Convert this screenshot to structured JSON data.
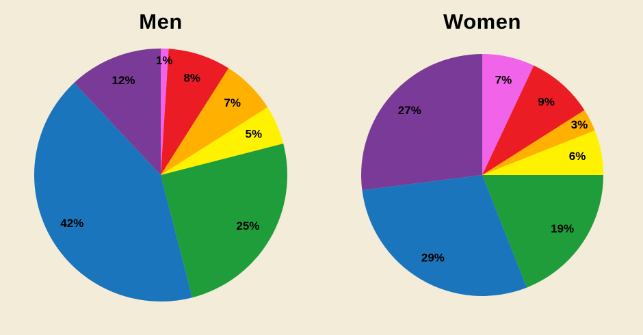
{
  "page": {
    "background": "#f2ecd8"
  },
  "chart_data": [
    {
      "type": "pie",
      "title": "Men",
      "values": [
        1,
        8,
        7,
        5,
        25,
        42,
        12
      ],
      "labels": [
        "1%",
        "8%",
        "7%",
        "5%",
        "25%",
        "42%",
        "12%"
      ],
      "colors": [
        "#f163e9",
        "#ec1c24",
        "#ffb000",
        "#fff200",
        "#1f9d3a",
        "#1b75bc",
        "#7a3b98"
      ],
      "start_angle_deg": 0,
      "direction": "clockwise",
      "legend": "none",
      "data_labels": "percent-inside"
    },
    {
      "type": "pie",
      "title": "Women",
      "values": [
        7,
        9,
        3,
        6,
        19,
        29,
        27
      ],
      "labels": [
        "7%",
        "9%",
        "3%",
        "6%",
        "19%",
        "29%",
        "27%"
      ],
      "colors": [
        "#f163e9",
        "#ec1c24",
        "#ffb000",
        "#fff200",
        "#1f9d3a",
        "#1b75bc",
        "#7a3b98"
      ],
      "start_angle_deg": 0,
      "direction": "clockwise",
      "legend": "none",
      "data_labels": "percent-inside"
    }
  ]
}
